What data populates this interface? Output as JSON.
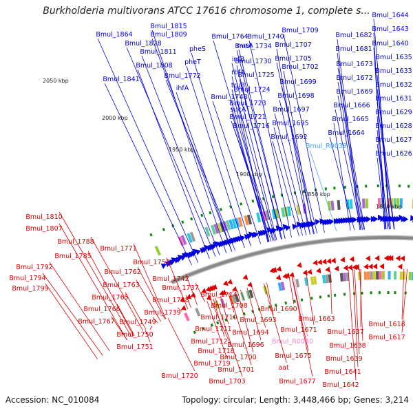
{
  "title": "Burkholderia multivorans ATCC 17616 chromosome 1, complete s...",
  "footer": {
    "accession": "Accession: NC_010084",
    "topology": "Topology: circular; Length: 3,448,466 bp; Genes: 3,214"
  },
  "colors": {
    "forward": "#0000dd",
    "reverse": "#dd0000",
    "trna": "#44aaee",
    "rrna_reverse": "#ee88cc",
    "backbone": "#888888",
    "rna_tick": "#118811"
  },
  "scale_labels": [
    "2050 kbp",
    "2000 kbp",
    "1950 kbp",
    "1900 kbp",
    "1850 kbp",
    "1800 kbp"
  ],
  "forward_labels": [
    "Bmul_1864",
    "Bmul_1815",
    "Bmul_1809",
    "Bmul_1828",
    "Bmul_1811",
    "Bmul_1808",
    "Bmul_1841",
    "pheS",
    "pheT",
    "Bmul_1772",
    "ihfA",
    "Bmul_1764",
    "nusA",
    "infB",
    "rbfA",
    "truB",
    "Bmul_1748",
    "sucA",
    "Bmul_1740",
    "Bmul_1734",
    "Bmul_1730",
    "Bmul_1725",
    "Bmul_1724",
    "Bmul_1723",
    "Bmul_1721",
    "Bmul_1716",
    "Bmul_1709",
    "Bmul_1707",
    "Bmul_1705",
    "Bmul_1702",
    "Bmul_1699",
    "Bmul_1698",
    "Bmul_1697",
    "Bmul_1695",
    "Bmul_1692",
    "Bmul_1682",
    "Bmul_1681",
    "Bmul_1673",
    "Bmul_1672",
    "Bmul_1669",
    "Bmul_1666",
    "Bmul_1665",
    "Bmul_1664",
    "Bmul_R0039",
    "Bmul_1644",
    "Bmul_1643",
    "Bmul_1640",
    "Bmul_1635",
    "Bmul_1633",
    "Bmul_1632",
    "Bmul_1631",
    "Bmul_1629",
    "Bmul_1628",
    "Bmul_1627",
    "Bmul_1626"
  ],
  "reverse_labels": [
    "Bmul_1810",
    "Bmul_1807",
    "Bmul_1788",
    "Bmul_1785",
    "Bmul_1792",
    "Bmul_1794",
    "Bmul_1799",
    "Bmul_1771",
    "Bmul_1752",
    "Bmul_1762",
    "Bmul_1763",
    "Bmul_1765",
    "Bmul_1766",
    "Bmul_1767",
    "Bmul_1749",
    "Bmul_1750",
    "Bmul_1751",
    "Bmul_1742",
    "Bmul_1737",
    "Bmul_1738",
    "Bmul_1739",
    "Bmul_1714",
    "Bmul_1708",
    "Bmul_1710",
    "Bmul_1711",
    "Bmul_1712",
    "Bmul_1718",
    "Bmul_1719",
    "Bmul_1720",
    "Bmul_1690",
    "Bmul_1693",
    "Bmul_1694",
    "Bmul_1696",
    "Bmul_1700",
    "Bmul_1701",
    "Bmul_1703",
    "Bmul_1663",
    "Bmul_1671",
    "Bmul_R0040",
    "Bmul_1675",
    "aat",
    "Bmul_1677",
    "Bmul_1637",
    "Bmul_1638",
    "Bmul_1639",
    "Bmul_1641",
    "Bmul_1642",
    "Bmul_1618",
    "Bmul_1617"
  ]
}
